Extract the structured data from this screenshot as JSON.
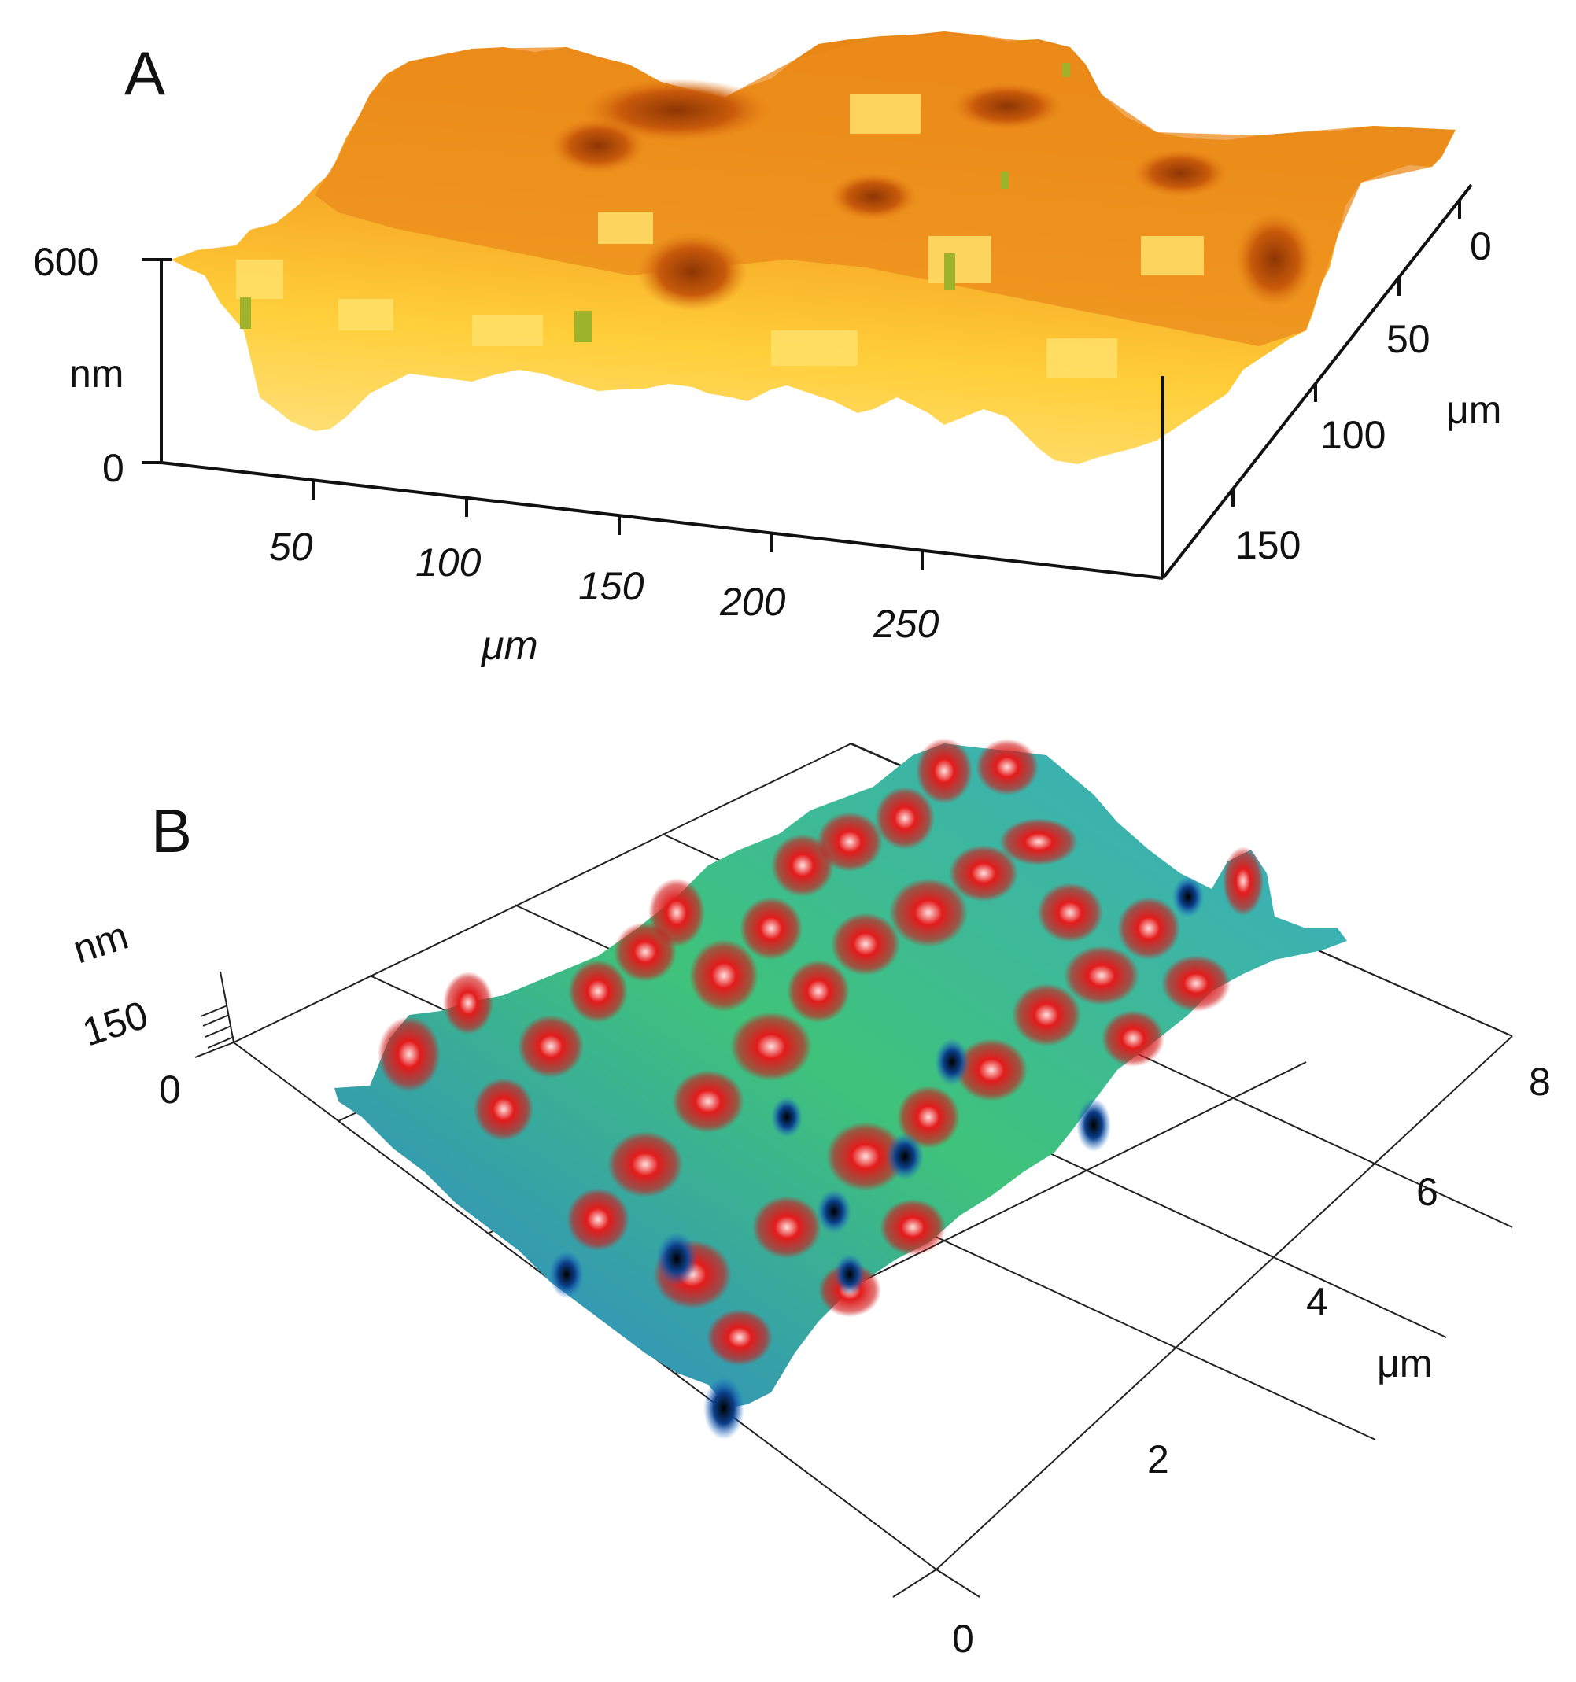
{
  "panel_a": {
    "label": "A",
    "z_unit": "nm",
    "z_ticks": [
      "600",
      "0"
    ],
    "x_unit": "μm",
    "x_ticks": [
      "50",
      "100",
      "150",
      "200",
      "250"
    ],
    "y_unit": "μm",
    "y_ticks": [
      "0",
      "50",
      "100",
      "150"
    ],
    "colormap": [
      "#fff4c2",
      "#ffd84a",
      "#f7a928",
      "#e27a12",
      "#b94b06",
      "#9bb02c"
    ]
  },
  "panel_b": {
    "label": "B",
    "z_unit": "nm",
    "z_ticks": [
      "150",
      "0"
    ],
    "x_ticks": [
      "0"
    ],
    "y_unit": "μm",
    "y_ticks": [
      "2",
      "4",
      "6",
      "8"
    ],
    "colormap": [
      "#000000",
      "#1d6fd1",
      "#35c06a",
      "#e21818",
      "#ffe7e7"
    ]
  }
}
